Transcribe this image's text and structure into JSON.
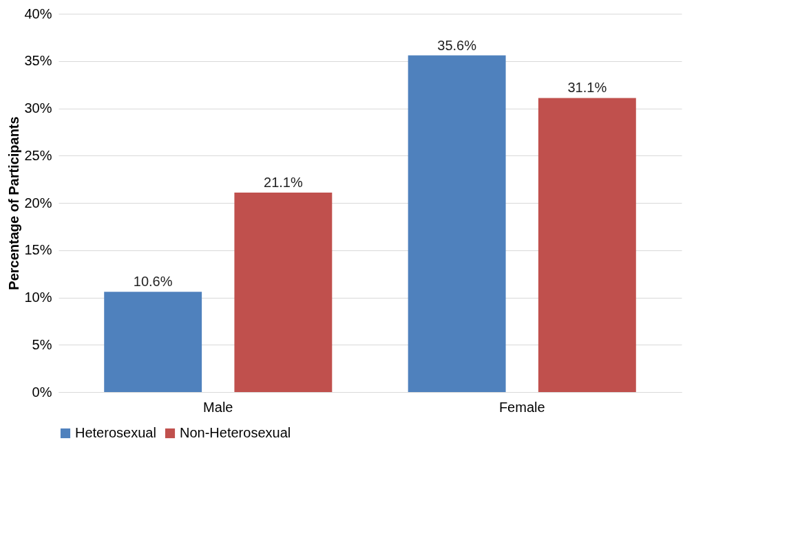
{
  "chart_data": {
    "type": "bar",
    "ylabel": "Percentage of Participants",
    "categories": [
      "Male",
      "Female"
    ],
    "series": [
      {
        "name": "Heterosexual",
        "color": "#4f81bd",
        "values": [
          10.6,
          35.6
        ]
      },
      {
        "name": "Non-Heterosexual",
        "color": "#c0504d",
        "values": [
          21.1,
          31.1
        ]
      }
    ],
    "ylim": [
      0,
      40
    ],
    "yticks": [
      {
        "value": 0,
        "label": "0%"
      },
      {
        "value": 5,
        "label": "5%"
      },
      {
        "value": 10,
        "label": "10%"
      },
      {
        "value": 15,
        "label": "15%"
      },
      {
        "value": 20,
        "label": "20%"
      },
      {
        "value": 25,
        "label": "25%"
      },
      {
        "value": 30,
        "label": "30%"
      },
      {
        "value": 35,
        "label": "35%"
      },
      {
        "value": 40,
        "label": "40%"
      }
    ],
    "value_labels": [
      [
        "10.6%",
        "35.6%"
      ],
      [
        "21.1%",
        "31.1%"
      ]
    ],
    "grid": "y",
    "legend": "bottom"
  }
}
